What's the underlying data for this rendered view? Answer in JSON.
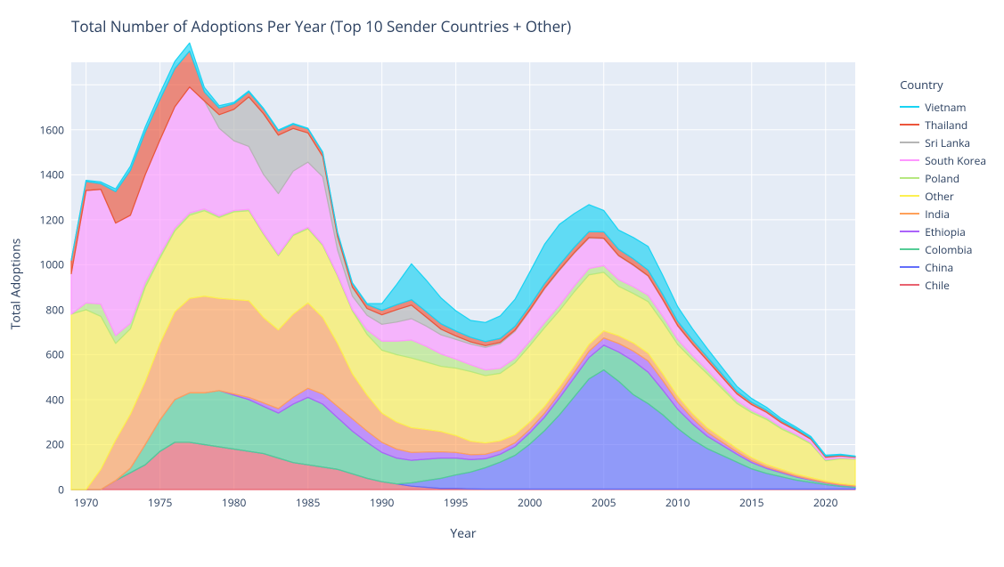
{
  "chart": {
    "type": "area-stacked",
    "title": "Total Number of Adoptions Per Year (Top 10 Sender Countries + Other)",
    "title_fontsize": 17,
    "xlabel": "Year",
    "ylabel": "Total Adoptions",
    "label_fontsize": 14,
    "tick_fontsize": 12,
    "background_color": "#ffffff",
    "plot_background_color": "#e5ecf6",
    "grid_color": "#ffffff",
    "xlim": [
      1969,
      2022
    ],
    "ylim": [
      0,
      1900
    ],
    "ytick_step": 200,
    "xtick_step": 5,
    "xtick_start": 1970,
    "fill_opacity": 0.65,
    "line_width": 1.2,
    "legend_title": "Country",
    "legend_position": "right",
    "years": [
      1969,
      1970,
      1971,
      1972,
      1973,
      1974,
      1975,
      1976,
      1977,
      1978,
      1979,
      1980,
      1981,
      1982,
      1983,
      1984,
      1985,
      1986,
      1987,
      1988,
      1989,
      1990,
      1991,
      1992,
      1993,
      1994,
      1995,
      1996,
      1997,
      1998,
      1999,
      2000,
      2001,
      2002,
      2003,
      2004,
      2005,
      2006,
      2007,
      2008,
      2009,
      2010,
      2011,
      2012,
      2013,
      2014,
      2015,
      2016,
      2017,
      2018,
      2019,
      2020,
      2021,
      2022
    ],
    "series": [
      {
        "name": "Chile",
        "fill_color": "#e9626f",
        "line_color": "#e9626f",
        "values": [
          0,
          0,
          0,
          40,
          75,
          110,
          170,
          210,
          210,
          200,
          190,
          180,
          170,
          160,
          140,
          120,
          110,
          100,
          90,
          70,
          50,
          35,
          25,
          15,
          10,
          5,
          5,
          3,
          2,
          2,
          2,
          2,
          2,
          2,
          2,
          2,
          2,
          2,
          2,
          2,
          2,
          2,
          2,
          2,
          2,
          2,
          2,
          2,
          2,
          2,
          2,
          2,
          2,
          2
        ]
      },
      {
        "name": "China",
        "fill_color": "#636efa",
        "line_color": "#636efa",
        "values": [
          0,
          0,
          0,
          0,
          0,
          0,
          0,
          0,
          0,
          0,
          0,
          0,
          0,
          0,
          0,
          0,
          0,
          0,
          0,
          0,
          0,
          0,
          0,
          15,
          30,
          45,
          60,
          75,
          95,
          120,
          150,
          200,
          260,
          330,
          410,
          490,
          530,
          480,
          420,
          380,
          330,
          270,
          220,
          180,
          150,
          120,
          90,
          70,
          55,
          40,
          30,
          20,
          12,
          8
        ]
      },
      {
        "name": "Colombia",
        "fill_color": "#54cc96",
        "line_color": "#54cc96",
        "values": [
          0,
          0,
          0,
          0,
          20,
          90,
          140,
          190,
          220,
          230,
          250,
          240,
          230,
          210,
          200,
          260,
          300,
          280,
          230,
          190,
          160,
          130,
          115,
          100,
          95,
          90,
          75,
          55,
          40,
          35,
          40,
          50,
          60,
          75,
          85,
          95,
          110,
          130,
          150,
          140,
          110,
          85,
          70,
          55,
          45,
          35,
          28,
          22,
          18,
          14,
          10,
          7,
          5,
          4
        ]
      },
      {
        "name": "Ethiopia",
        "fill_color": "#ab63fa",
        "line_color": "#ab63fa",
        "values": [
          0,
          0,
          0,
          0,
          0,
          0,
          0,
          0,
          0,
          0,
          0,
          5,
          10,
          15,
          20,
          30,
          40,
          45,
          50,
          55,
          50,
          45,
          40,
          35,
          32,
          28,
          25,
          22,
          20,
          18,
          16,
          16,
          18,
          20,
          24,
          28,
          32,
          38,
          44,
          50,
          42,
          32,
          24,
          18,
          14,
          10,
          8,
          6,
          5,
          4,
          3,
          2,
          2,
          1
        ]
      },
      {
        "name": "India",
        "fill_color": "#ffa15a",
        "line_color": "#ffa15a",
        "values": [
          0,
          0,
          90,
          180,
          240,
          280,
          340,
          390,
          420,
          430,
          410,
          420,
          430,
          380,
          350,
          370,
          380,
          340,
          280,
          200,
          160,
          130,
          120,
          110,
          100,
          90,
          75,
          60,
          50,
          42,
          36,
          32,
          30,
          28,
          28,
          30,
          32,
          34,
          36,
          34,
          30,
          26,
          22,
          20,
          18,
          16,
          14,
          12,
          10,
          9,
          8,
          7,
          6,
          5
        ]
      },
      {
        "name": "Other",
        "fill_color": "#fcf051",
        "line_color": "#fcf051",
        "values": [
          780,
          800,
          680,
          430,
          380,
          420,
          380,
          360,
          370,
          380,
          360,
          390,
          400,
          370,
          330,
          350,
          330,
          320,
          300,
          280,
          270,
          280,
          300,
          310,
          300,
          290,
          300,
          310,
          300,
          300,
          320,
          340,
          350,
          340,
          330,
          310,
          260,
          220,
          220,
          230,
          230,
          230,
          240,
          240,
          220,
          200,
          200,
          200,
          180,
          170,
          150,
          90,
          110,
          115
        ]
      },
      {
        "name": "Poland",
        "fill_color": "#b6e880",
        "line_color": "#b6e880",
        "values": [
          0,
          30,
          55,
          35,
          25,
          20,
          15,
          12,
          10,
          8,
          7,
          6,
          6,
          6,
          6,
          6,
          6,
          6,
          6,
          6,
          20,
          40,
          60,
          80,
          70,
          55,
          40,
          30,
          25,
          22,
          20,
          20,
          22,
          24,
          26,
          28,
          30,
          30,
          30,
          28,
          26,
          22,
          18,
          16,
          14,
          12,
          10,
          9,
          8,
          7,
          6,
          5,
          4,
          3
        ]
      },
      {
        "name": "South Korea",
        "fill_color": "#fe97ff",
        "line_color": "#fe97ff",
        "values": [
          180,
          500,
          510,
          500,
          480,
          480,
          510,
          540,
          560,
          480,
          390,
          310,
          280,
          260,
          270,
          280,
          290,
          300,
          110,
          60,
          65,
          75,
          85,
          95,
          90,
          85,
          88,
          92,
          100,
          110,
          120,
          135,
          150,
          155,
          145,
          135,
          120,
          105,
          95,
          85,
          72,
          60,
          50,
          42,
          36,
          30,
          25,
          22,
          19,
          16,
          14,
          10,
          8,
          6
        ]
      },
      {
        "name": "Sri Lanka",
        "fill_color": "#b5b5b5",
        "line_color": "#b5b5b5",
        "values": [
          0,
          0,
          0,
          0,
          0,
          0,
          0,
          0,
          0,
          0,
          60,
          140,
          220,
          270,
          260,
          190,
          130,
          90,
          60,
          40,
          30,
          42,
          55,
          60,
          40,
          25,
          15,
          10,
          8,
          6,
          5,
          4,
          4,
          3,
          3,
          3,
          2,
          2,
          2,
          2,
          2,
          2,
          2,
          1,
          1,
          1,
          1,
          1,
          1,
          1,
          1,
          1,
          1,
          0
        ]
      },
      {
        "name": "Thailand",
        "fill_color": "#ec553b",
        "line_color": "#ec553b",
        "values": [
          60,
          40,
          25,
          140,
          200,
          190,
          180,
          170,
          160,
          40,
          30,
          25,
          22,
          20,
          19,
          18,
          18,
          17,
          16,
          16,
          18,
          20,
          22,
          24,
          24,
          24,
          22,
          20,
          18,
          17,
          17,
          18,
          20,
          22,
          24,
          26,
          28,
          28,
          27,
          25,
          22,
          19,
          17,
          15,
          13,
          11,
          10,
          9,
          8,
          7,
          6,
          5,
          4,
          3
        ]
      },
      {
        "name": "Vietnam",
        "fill_color": "#19d3f3",
        "line_color": "#19d3f3",
        "values": [
          0,
          5,
          8,
          12,
          18,
          22,
          28,
          32,
          36,
          20,
          10,
          6,
          5,
          4,
          4,
          4,
          3,
          3,
          3,
          3,
          4,
          30,
          90,
          160,
          140,
          115,
          90,
          75,
          85,
          100,
          120,
          150,
          175,
          180,
          150,
          120,
          95,
          85,
          95,
          105,
          85,
          65,
          50,
          38,
          30,
          22,
          17,
          13,
          10,
          8,
          6,
          4,
          3,
          2
        ]
      }
    ],
    "legend_order": [
      "Vietnam",
      "Thailand",
      "Sri Lanka",
      "South Korea",
      "Poland",
      "Other",
      "India",
      "Ethiopia",
      "Colombia",
      "China",
      "Chile"
    ]
  }
}
